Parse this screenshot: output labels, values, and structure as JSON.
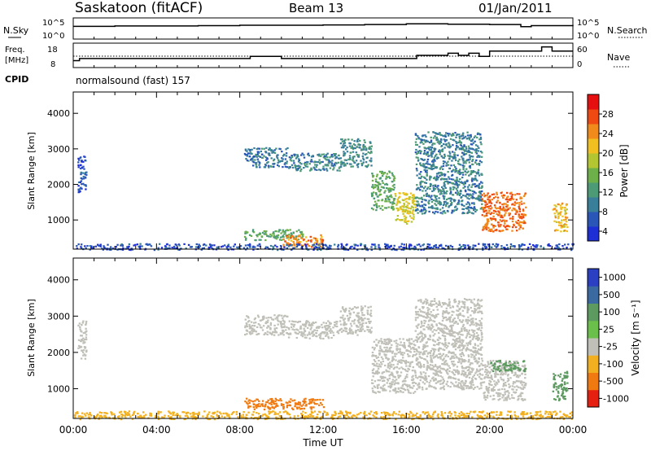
{
  "header": {
    "station": "Saskatoon (fitACF)",
    "beam": "Beam 13",
    "date": "01/Jan/2011"
  },
  "labels": {
    "nsky": "N.Sky",
    "freq_line1": "Freq.",
    "freq_line2": "[MHz]",
    "cpid": "CPID",
    "nsearch": "N.Search",
    "nave": "Nave",
    "cpid_value": "normalsound (fast) 157",
    "sky_ticks": [
      "10^5",
      "10^0"
    ],
    "freq_ticks": [
      "18",
      "8"
    ],
    "nave_ticks": [
      "60",
      "0"
    ],
    "xlabel": "Time UT"
  },
  "chart_data": [
    {
      "type": "line",
      "name": "N.Sky",
      "x": [
        0,
        2,
        4,
        6,
        8,
        10,
        12,
        14,
        16,
        18,
        20,
        21.5,
        22,
        24
      ],
      "values": [
        3.1,
        3.2,
        3.2,
        3.3,
        3.4,
        3.4,
        3.5,
        3.6,
        3.8,
        3.7,
        3.6,
        3.0,
        3.3,
        3.5
      ],
      "ylim": [
        0,
        5
      ]
    },
    {
      "type": "line",
      "name": "Freq.",
      "x": [
        0,
        0.3,
        8,
        8.5,
        9.5,
        10,
        15,
        16.5,
        18,
        18.5,
        19,
        19.5,
        20,
        21.5,
        22.5,
        23,
        24
      ],
      "values": [
        10.5,
        11.5,
        11.5,
        12.5,
        12.5,
        11.5,
        11.5,
        13,
        14,
        13,
        14,
        12.5,
        15,
        15,
        17,
        15,
        15
      ],
      "ylim": [
        8,
        18
      ]
    },
    {
      "type": "heatmap",
      "name": "Power",
      "xlabel": "Time UT",
      "ylabel": "Slant Range [km]",
      "xlim": [
        0,
        24
      ],
      "ylim": [
        180,
        4600
      ],
      "x_ticks": [
        "00:00",
        "04:00",
        "08:00",
        "12:00",
        "16:00",
        "20:00",
        "00:00"
      ],
      "y_ticks": [
        1000,
        2000,
        3000,
        4000
      ],
      "colorbar": {
        "label": "Power [dB]",
        "ticks": [
          4,
          8,
          12,
          16,
          20,
          24,
          28
        ]
      },
      "regions": [
        {
          "t0": 0.2,
          "t1": 0.6,
          "r0": 1800,
          "r1": 2900,
          "v": 6
        },
        {
          "t0": 8.2,
          "t1": 10.3,
          "r0": 2500,
          "r1": 3050,
          "v": 9
        },
        {
          "t0": 10.3,
          "t1": 12.8,
          "r0": 2400,
          "r1": 2900,
          "v": 10
        },
        {
          "t0": 12.8,
          "t1": 14.3,
          "r0": 2500,
          "r1": 3300,
          "v": 11
        },
        {
          "t0": 14.3,
          "t1": 15.4,
          "r0": 1300,
          "r1": 2400,
          "v": 14
        },
        {
          "t0": 15.4,
          "t1": 16.4,
          "r0": 900,
          "r1": 1800,
          "v": 20
        },
        {
          "t0": 16.4,
          "t1": 19.6,
          "r0": 1200,
          "r1": 3500,
          "v": 10
        },
        {
          "t0": 19.6,
          "t1": 21.7,
          "r0": 700,
          "r1": 1800,
          "v": 26
        },
        {
          "t0": 8.2,
          "t1": 11.0,
          "r0": 450,
          "r1": 750,
          "v": 14
        },
        {
          "t0": 10.0,
          "t1": 12.0,
          "r0": 250,
          "r1": 600,
          "v": 25
        },
        {
          "t0": 23.0,
          "t1": 23.7,
          "r0": 700,
          "r1": 1500,
          "v": 22
        },
        {
          "t0": 0.0,
          "t1": 24.0,
          "r0": 180,
          "r1": 350,
          "v": 6
        }
      ]
    },
    {
      "type": "heatmap",
      "name": "Velocity",
      "xlabel": "Time UT",
      "ylabel": "Slant Range [km]",
      "xlim": [
        0,
        24
      ],
      "ylim": [
        180,
        4600
      ],
      "x_ticks": [
        "00:00",
        "04:00",
        "08:00",
        "12:00",
        "16:00",
        "20:00",
        "00:00"
      ],
      "y_ticks": [
        1000,
        2000,
        3000,
        4000
      ],
      "colorbar": {
        "label": "Velocity [m s⁻¹]",
        "ticks": [
          "1000",
          "500",
          "100",
          "25",
          "-25",
          "-100",
          "-500",
          "-1000"
        ]
      },
      "regions": [
        {
          "t0": 0.2,
          "t1": 0.6,
          "r0": 1800,
          "r1": 2900,
          "v": 0
        },
        {
          "t0": 8.2,
          "t1": 10.3,
          "r0": 2500,
          "r1": 3050,
          "v": 0
        },
        {
          "t0": 10.3,
          "t1": 12.8,
          "r0": 2400,
          "r1": 2900,
          "v": 0
        },
        {
          "t0": 12.8,
          "t1": 14.3,
          "r0": 2500,
          "r1": 3300,
          "v": 0
        },
        {
          "t0": 14.3,
          "t1": 16.4,
          "r0": 900,
          "r1": 2400,
          "v": 0
        },
        {
          "t0": 16.4,
          "t1": 19.6,
          "r0": 1000,
          "r1": 3500,
          "v": 0
        },
        {
          "t0": 19.6,
          "t1": 21.7,
          "r0": 700,
          "r1": 1800,
          "v": 0
        },
        {
          "t0": 20.0,
          "t1": 21.7,
          "r0": 1500,
          "r1": 1800,
          "v": 150
        },
        {
          "t0": 8.2,
          "t1": 12.0,
          "r0": 450,
          "r1": 750,
          "v": -200
        },
        {
          "t0": 0.0,
          "t1": 24.0,
          "r0": 180,
          "r1": 400,
          "v": -60
        },
        {
          "t0": 23.0,
          "t1": 23.7,
          "r0": 700,
          "r1": 1500,
          "v": 150
        }
      ]
    }
  ]
}
